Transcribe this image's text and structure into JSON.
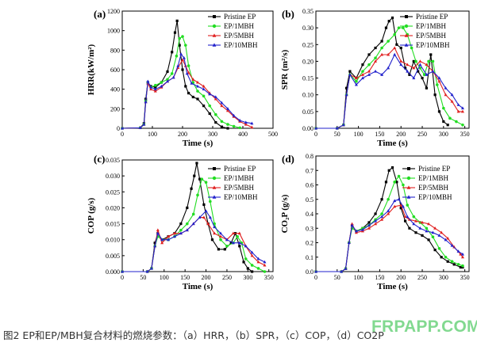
{
  "caption": "图2  EP和EP/MBH复合材料的燃烧参数：（a）HRR，（b）SPR，（c）COP，（d）CO2P",
  "watermark": "FRPAPP.COM",
  "colors": {
    "Pristine EP": "#000000",
    "EP/1MBH": "#22dd22",
    "EP/5MBH": "#e02020",
    "EP/10MBH": "#2222cc"
  },
  "chart_data": [
    {
      "panel": "(a)",
      "type": "line",
      "xlabel": "Time (s)",
      "ylabel": "HRR(kW/m²)",
      "xlim": [
        0,
        500
      ],
      "ylim": [
        0,
        1200
      ],
      "xticks": [
        0,
        100,
        200,
        300,
        400,
        500
      ],
      "yticks": [
        0,
        200,
        400,
        600,
        800,
        1000,
        1200
      ],
      "legend_position": "top-right",
      "series": [
        {
          "name": "Pristine EP",
          "marker": "square",
          "x": [
            0,
            60,
            72,
            78,
            85,
            95,
            110,
            130,
            150,
            165,
            175,
            182,
            190,
            200,
            210,
            220,
            235,
            250,
            270,
            290,
            310,
            330,
            350
          ],
          "y": [
            0,
            5,
            50,
            300,
            470,
            430,
            420,
            470,
            580,
            780,
            980,
            1100,
            850,
            600,
            430,
            360,
            320,
            300,
            230,
            150,
            60,
            15,
            0
          ]
        },
        {
          "name": "EP/1MBH",
          "marker": "circle",
          "x": [
            0,
            60,
            72,
            78,
            85,
            95,
            110,
            130,
            150,
            165,
            180,
            190,
            200,
            210,
            220,
            235,
            250,
            270,
            290,
            310,
            330,
            350,
            370,
            390
          ],
          "y": [
            0,
            5,
            40,
            280,
            470,
            420,
            440,
            470,
            500,
            560,
            740,
            920,
            940,
            850,
            640,
            470,
            380,
            330,
            230,
            140,
            70,
            40,
            20,
            5
          ]
        },
        {
          "name": "EP/5MBH",
          "marker": "triangle-up",
          "x": [
            0,
            60,
            72,
            78,
            85,
            95,
            110,
            130,
            150,
            170,
            185,
            200,
            210,
            220,
            235,
            250,
            270,
            290,
            310,
            330,
            350,
            370,
            390,
            410,
            430
          ],
          "y": [
            0,
            5,
            40,
            270,
            460,
            400,
            380,
            420,
            480,
            520,
            620,
            700,
            640,
            570,
            500,
            470,
            430,
            360,
            300,
            230,
            180,
            120,
            70,
            40,
            10
          ]
        },
        {
          "name": "EP/10MBH",
          "marker": "triangle-up",
          "x": [
            0,
            60,
            72,
            78,
            85,
            95,
            110,
            130,
            150,
            170,
            185,
            195,
            205,
            215,
            230,
            250,
            270,
            290,
            310,
            330,
            350,
            370,
            390,
            410,
            430
          ],
          "y": [
            0,
            5,
            40,
            270,
            480,
            420,
            400,
            430,
            480,
            520,
            640,
            760,
            720,
            560,
            460,
            430,
            400,
            350,
            320,
            260,
            200,
            130,
            80,
            60,
            50
          ]
        }
      ]
    },
    {
      "panel": "(b)",
      "type": "line",
      "xlabel": "Time (s)",
      "ylabel": "SPR (m²/s)",
      "xlim": [
        0,
        360
      ],
      "ylim": [
        0,
        0.35
      ],
      "xticks": [
        0,
        50,
        100,
        150,
        200,
        250,
        300,
        350
      ],
      "yticks": [
        0.0,
        0.05,
        0.1,
        0.15,
        0.2,
        0.25,
        0.3,
        0.35
      ],
      "legend_position": "top-right",
      "series": [
        {
          "name": "Pristine EP",
          "marker": "square",
          "x": [
            0,
            50,
            65,
            72,
            80,
            95,
            110,
            125,
            140,
            155,
            165,
            172,
            180,
            190,
            200,
            210,
            220,
            230,
            240,
            250,
            260,
            270,
            280,
            290,
            300,
            310
          ],
          "y": [
            0,
            0,
            0.01,
            0.12,
            0.17,
            0.15,
            0.19,
            0.22,
            0.24,
            0.26,
            0.3,
            0.32,
            0.33,
            0.25,
            0.24,
            0.18,
            0.16,
            0.2,
            0.17,
            0.15,
            0.12,
            0.22,
            0.1,
            0.05,
            0.02,
            0.01
          ]
        },
        {
          "name": "EP/1MBH",
          "marker": "circle",
          "x": [
            0,
            50,
            65,
            72,
            80,
            95,
            110,
            125,
            140,
            155,
            170,
            185,
            195,
            205,
            215,
            225,
            235,
            245,
            255,
            265,
            275,
            285,
            300,
            315,
            330,
            345
          ],
          "y": [
            0,
            0,
            0.01,
            0.1,
            0.16,
            0.14,
            0.17,
            0.19,
            0.21,
            0.24,
            0.26,
            0.28,
            0.3,
            0.3,
            0.28,
            0.24,
            0.2,
            0.18,
            0.16,
            0.2,
            0.2,
            0.13,
            0.06,
            0.03,
            0.02,
            0.01
          ]
        },
        {
          "name": "EP/5MBH",
          "marker": "triangle-up",
          "x": [
            0,
            50,
            65,
            72,
            80,
            95,
            110,
            125,
            140,
            155,
            170,
            185,
            200,
            215,
            230,
            245,
            260,
            275,
            290,
            305,
            320,
            335,
            345
          ],
          "y": [
            0,
            0,
            0.01,
            0.1,
            0.16,
            0.15,
            0.16,
            0.17,
            0.2,
            0.22,
            0.22,
            0.24,
            0.2,
            0.19,
            0.18,
            0.2,
            0.19,
            0.17,
            0.14,
            0.1,
            0.08,
            0.05,
            0.05
          ]
        },
        {
          "name": "EP/10MBH",
          "marker": "triangle-up",
          "x": [
            0,
            50,
            65,
            72,
            80,
            95,
            110,
            125,
            140,
            155,
            170,
            185,
            200,
            215,
            230,
            245,
            260,
            275,
            290,
            305,
            320,
            335,
            345
          ],
          "y": [
            0,
            0,
            0.01,
            0.1,
            0.16,
            0.13,
            0.15,
            0.16,
            0.17,
            0.16,
            0.18,
            0.22,
            0.19,
            0.17,
            0.15,
            0.19,
            0.16,
            0.17,
            0.15,
            0.12,
            0.1,
            0.07,
            0.06
          ]
        }
      ]
    },
    {
      "panel": "(c)",
      "type": "line",
      "xlabel": "Time (s)",
      "ylabel": "COP (g/s)",
      "xlim": [
        0,
        360
      ],
      "ylim": [
        0,
        0.035
      ],
      "xticks": [
        0,
        50,
        100,
        150,
        200,
        250,
        300,
        350
      ],
      "yticks": [
        0.0,
        0.005,
        0.01,
        0.015,
        0.02,
        0.025,
        0.03,
        0.035
      ],
      "legend_position": "top-right",
      "series": [
        {
          "name": "Pristine EP",
          "marker": "square",
          "x": [
            0,
            60,
            70,
            78,
            85,
            95,
            110,
            125,
            140,
            155,
            165,
            172,
            178,
            185,
            195,
            205,
            215,
            230,
            245,
            260,
            270,
            280,
            290,
            300,
            310
          ],
          "y": [
            0,
            0,
            0.001,
            0.009,
            0.012,
            0.01,
            0.011,
            0.012,
            0.015,
            0.02,
            0.026,
            0.03,
            0.034,
            0.029,
            0.021,
            0.015,
            0.01,
            0.007,
            0.007,
            0.009,
            0.012,
            0.008,
            0.003,
            0.001,
            0
          ]
        },
        {
          "name": "EP/1MBH",
          "marker": "circle",
          "x": [
            0,
            60,
            70,
            78,
            85,
            95,
            110,
            125,
            140,
            155,
            170,
            180,
            190,
            200,
            210,
            220,
            235,
            250,
            265,
            275,
            285,
            295,
            310,
            325,
            340
          ],
          "y": [
            0,
            0,
            0.001,
            0.008,
            0.011,
            0.01,
            0.01,
            0.011,
            0.013,
            0.015,
            0.018,
            0.024,
            0.029,
            0.028,
            0.022,
            0.015,
            0.01,
            0.008,
            0.009,
            0.011,
            0.009,
            0.004,
            0.002,
            0.001,
            0
          ]
        },
        {
          "name": "EP/5MBH",
          "marker": "triangle-up",
          "x": [
            0,
            60,
            70,
            78,
            85,
            95,
            110,
            125,
            140,
            155,
            170,
            185,
            195,
            205,
            220,
            235,
            250,
            265,
            280,
            295,
            310,
            325,
            340
          ],
          "y": [
            0,
            0,
            0.001,
            0.008,
            0.013,
            0.009,
            0.011,
            0.012,
            0.012,
            0.013,
            0.015,
            0.017,
            0.017,
            0.015,
            0.012,
            0.011,
            0.01,
            0.012,
            0.012,
            0.008,
            0.005,
            0.003,
            0.002
          ]
        },
        {
          "name": "EP/10MBH",
          "marker": "triangle-up",
          "x": [
            0,
            60,
            70,
            78,
            85,
            95,
            110,
            125,
            140,
            155,
            170,
            185,
            200,
            210,
            220,
            235,
            250,
            265,
            280,
            295,
            310,
            325,
            340
          ],
          "y": [
            0,
            0,
            0.001,
            0.008,
            0.012,
            0.01,
            0.01,
            0.011,
            0.012,
            0.013,
            0.015,
            0.017,
            0.019,
            0.017,
            0.014,
            0.012,
            0.01,
            0.009,
            0.009,
            0.008,
            0.006,
            0.004,
            0.003
          ]
        }
      ]
    },
    {
      "panel": "(d)",
      "type": "line",
      "xlabel": "Time (s)",
      "ylabel": "CO₂P (g/s)",
      "xlim": [
        0,
        360
      ],
      "ylim": [
        0,
        0.8
      ],
      "xticks": [
        0,
        50,
        100,
        150,
        200,
        250,
        300,
        350
      ],
      "yticks": [
        0.0,
        0.1,
        0.2,
        0.3,
        0.4,
        0.5,
        0.6,
        0.7,
        0.8
      ],
      "legend_position": "top-right",
      "series": [
        {
          "name": "Pristine EP",
          "marker": "square",
          "x": [
            0,
            60,
            70,
            78,
            85,
            95,
            110,
            125,
            140,
            155,
            165,
            172,
            180,
            190,
            200,
            210,
            220,
            235,
            250,
            265,
            280,
            295,
            310,
            325,
            340,
            345
          ],
          "y": [
            0,
            0,
            0.02,
            0.2,
            0.32,
            0.28,
            0.3,
            0.34,
            0.4,
            0.5,
            0.62,
            0.7,
            0.72,
            0.62,
            0.44,
            0.35,
            0.3,
            0.27,
            0.25,
            0.22,
            0.15,
            0.1,
            0.07,
            0.05,
            0.03,
            0.03
          ]
        },
        {
          "name": "EP/1MBH",
          "marker": "circle",
          "x": [
            0,
            60,
            70,
            78,
            85,
            95,
            110,
            125,
            140,
            155,
            170,
            185,
            195,
            205,
            215,
            230,
            245,
            260,
            275,
            290,
            305,
            320,
            335,
            345
          ],
          "y": [
            0,
            0,
            0.02,
            0.2,
            0.3,
            0.28,
            0.3,
            0.32,
            0.36,
            0.4,
            0.5,
            0.62,
            0.66,
            0.6,
            0.46,
            0.38,
            0.34,
            0.3,
            0.24,
            0.16,
            0.1,
            0.07,
            0.05,
            0.04
          ]
        },
        {
          "name": "EP/5MBH",
          "marker": "triangle-up",
          "x": [
            0,
            60,
            70,
            78,
            85,
            95,
            110,
            125,
            140,
            155,
            170,
            185,
            200,
            210,
            220,
            235,
            250,
            265,
            280,
            295,
            310,
            325,
            340,
            345
          ],
          "y": [
            0,
            0,
            0.02,
            0.2,
            0.33,
            0.27,
            0.28,
            0.3,
            0.33,
            0.36,
            0.4,
            0.45,
            0.46,
            0.38,
            0.36,
            0.35,
            0.34,
            0.33,
            0.3,
            0.27,
            0.23,
            0.17,
            0.12,
            0.1
          ]
        },
        {
          "name": "EP/10MBH",
          "marker": "triangle-up",
          "x": [
            0,
            60,
            70,
            78,
            85,
            95,
            110,
            125,
            140,
            155,
            170,
            185,
            195,
            205,
            215,
            230,
            245,
            260,
            275,
            290,
            305,
            320,
            335,
            345
          ],
          "y": [
            0,
            0,
            0.02,
            0.2,
            0.32,
            0.28,
            0.29,
            0.32,
            0.35,
            0.38,
            0.42,
            0.49,
            0.5,
            0.45,
            0.38,
            0.33,
            0.3,
            0.28,
            0.27,
            0.25,
            0.22,
            0.18,
            0.14,
            0.12
          ]
        }
      ]
    }
  ]
}
